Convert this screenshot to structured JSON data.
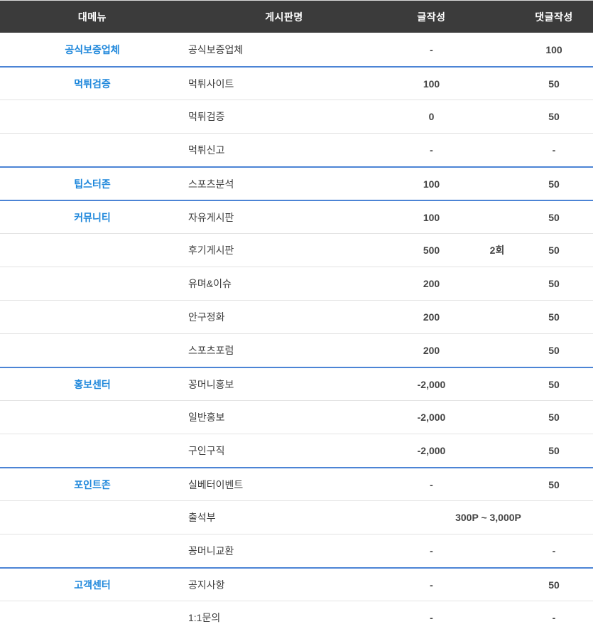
{
  "table": {
    "columns": [
      "대메뉴",
      "게시판명",
      "글작성",
      "댓글작성"
    ],
    "colors": {
      "header_bg": "#3b3b3b",
      "menu_link": "#1e87db",
      "group_divider": "#4c84d5",
      "row_divider": "#e3e3e3"
    },
    "rows": [
      {
        "menu": "공식보증업체",
        "board": "공식보증업체",
        "write": "-",
        "comment": "100",
        "divider": "none"
      },
      {
        "menu": "먹튀검증",
        "board": "먹튀사이트",
        "write": "100",
        "comment": "50",
        "divider": "blue"
      },
      {
        "menu": "",
        "board": "먹튀검증",
        "write": "0",
        "comment": "50",
        "divider": "gray"
      },
      {
        "menu": "",
        "board": "먹튀신고",
        "write": "-",
        "comment": "-",
        "divider": "gray"
      },
      {
        "menu": "팁스터존",
        "board": "스포츠분석",
        "write": "100",
        "comment": "50",
        "divider": "blue"
      },
      {
        "menu": "커뮤니티",
        "board": "자유게시판",
        "write": "100",
        "comment": "50",
        "divider": "blue"
      },
      {
        "menu": "",
        "board": "후기게시판",
        "write": "500",
        "bonus": "2회",
        "comment": "50",
        "divider": "gray"
      },
      {
        "menu": "",
        "board": "유며&이슈",
        "write": "200",
        "comment": "50",
        "divider": "gray"
      },
      {
        "menu": "",
        "board": "안구정화",
        "write": "200",
        "comment": "50",
        "divider": "gray"
      },
      {
        "menu": "",
        "board": "스포츠포럼",
        "write": "200",
        "comment": "50",
        "divider": "gray"
      },
      {
        "menu": "홍보센터",
        "board": "꽁머니홍보",
        "write": "-2,000",
        "comment": "50",
        "divider": "blue"
      },
      {
        "menu": "",
        "board": "일반홍보",
        "write": "-2,000",
        "comment": "50",
        "divider": "gray"
      },
      {
        "menu": "",
        "board": "구인구직",
        "write": "-2,000",
        "comment": "50",
        "divider": "gray"
      },
      {
        "menu": "포인트존",
        "board": "실베터이벤트",
        "write": "-",
        "comment": "50",
        "divider": "blue"
      },
      {
        "menu": "",
        "board": "출석부",
        "span": "300P ~ 3,000P",
        "divider": "gray"
      },
      {
        "menu": "",
        "board": "꽁머니교환",
        "write": "-",
        "comment": "-",
        "divider": "gray"
      },
      {
        "menu": "고객센터",
        "board": "공지사항",
        "write": "-",
        "comment": "50",
        "divider": "blue"
      },
      {
        "menu": "",
        "board": "1:1문의",
        "write": "-",
        "comment": "-",
        "divider": "gray"
      }
    ]
  }
}
